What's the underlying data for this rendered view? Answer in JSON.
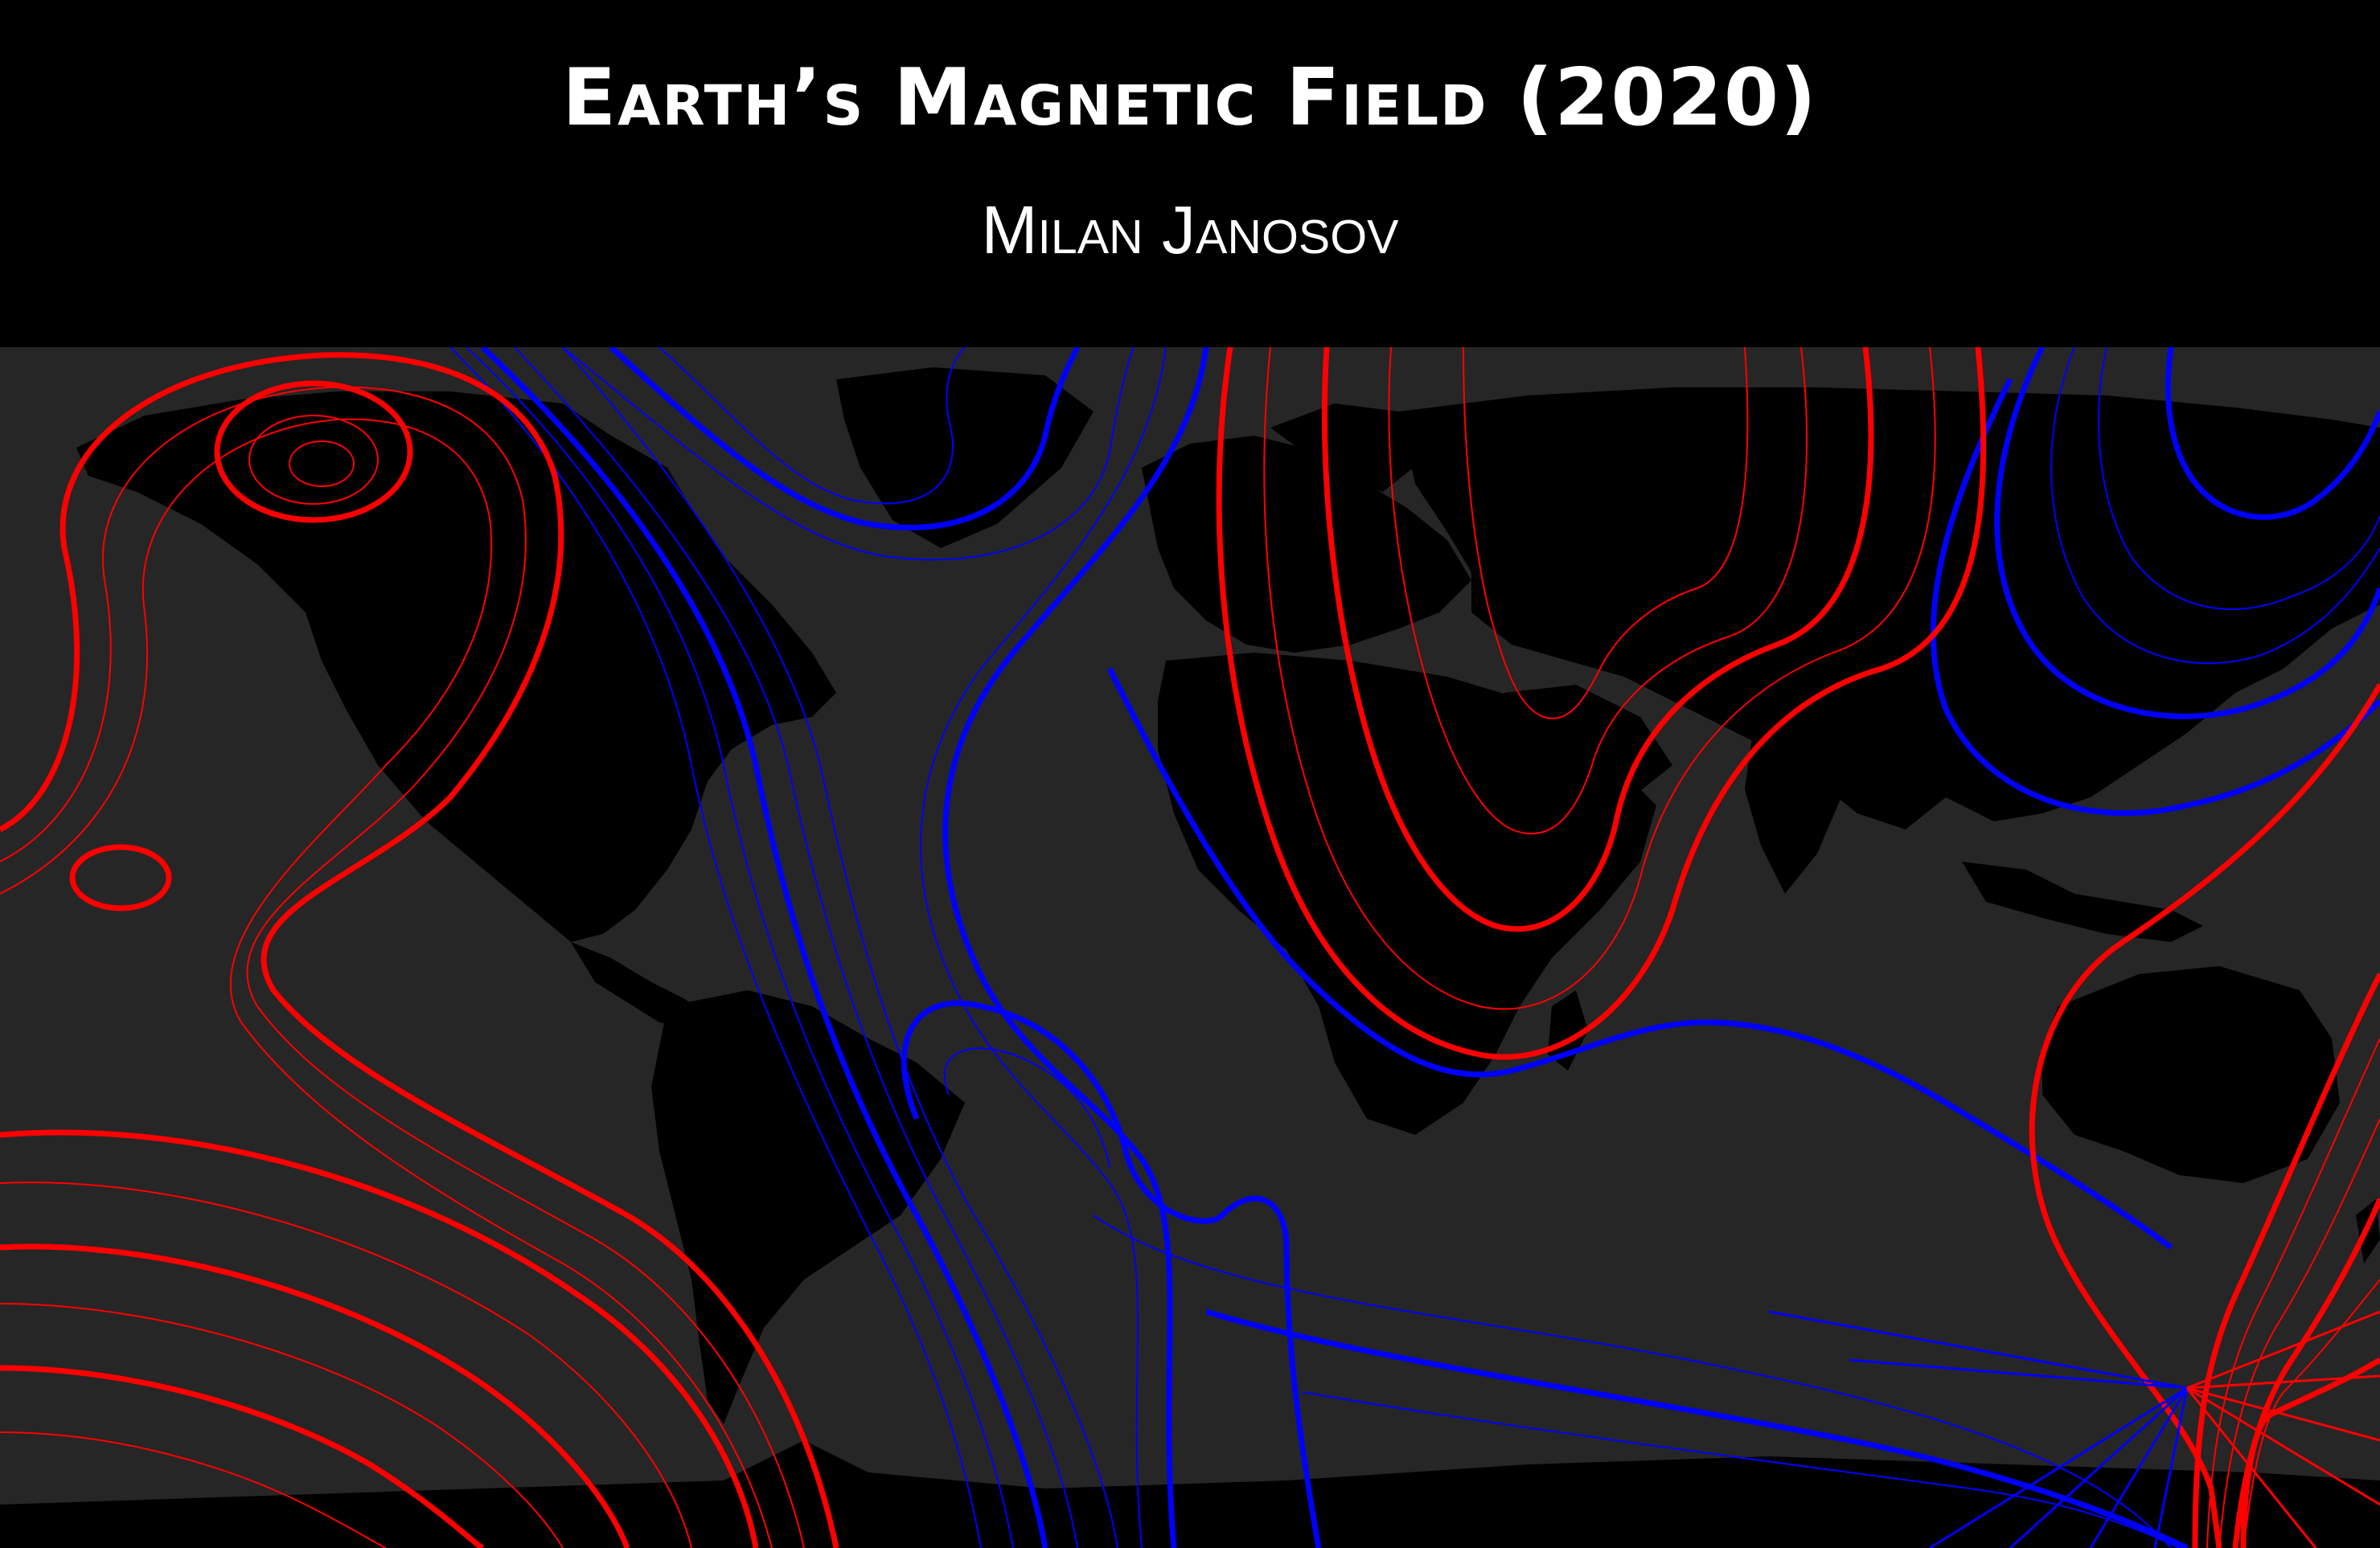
{
  "header": {
    "title": "Earth’s Magnetic Field (2020)",
    "author": "Milan Janosov"
  },
  "map": {
    "ocean_color": "#262626",
    "land_color": "#000000",
    "positive_field_color": "#ff0000",
    "negative_field_color": "#0000ff",
    "line_style": "thin lines with every fifth line bold",
    "landmasses": [
      "north-america",
      "south-america",
      "greenland",
      "europe",
      "africa",
      "asia",
      "australia",
      "antarctica"
    ]
  }
}
